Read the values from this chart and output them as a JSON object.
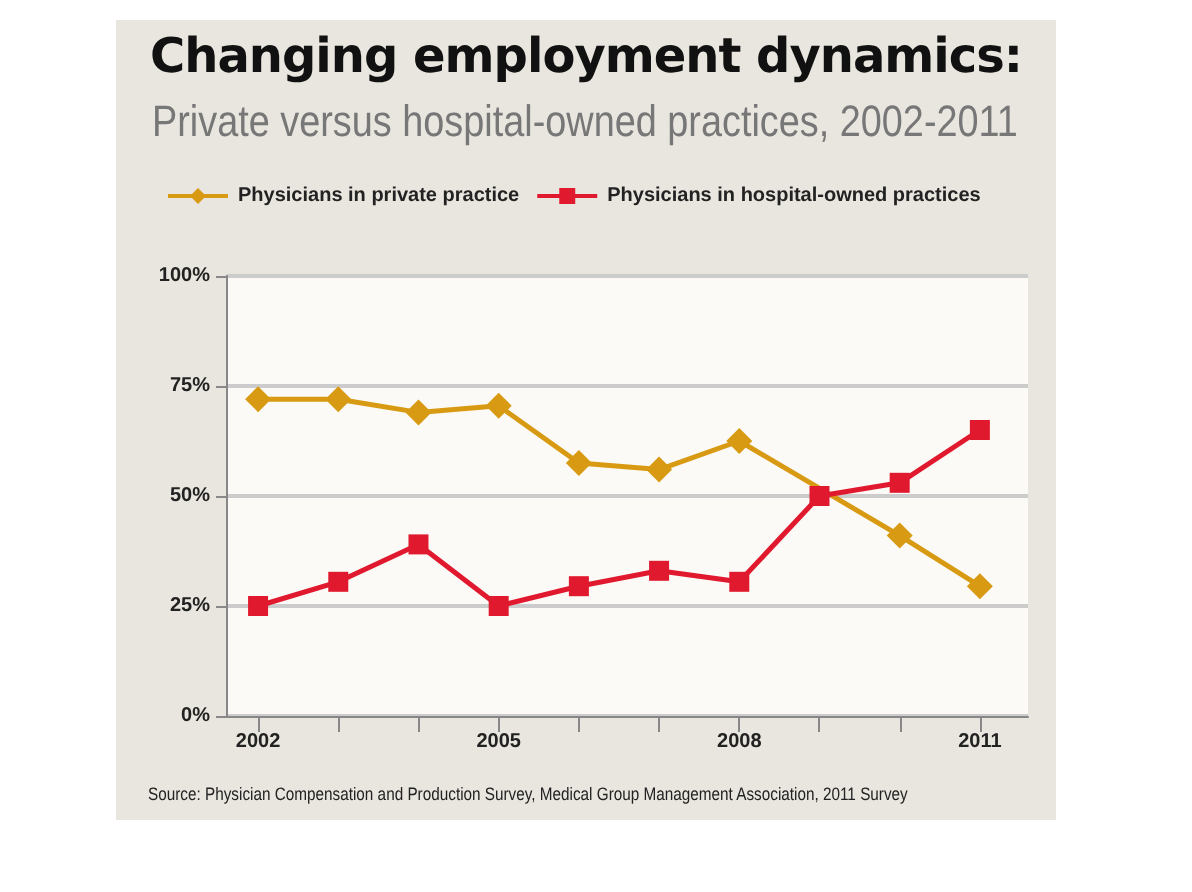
{
  "chart_data": {
    "type": "line",
    "title": "Changing employment dynamics:",
    "subtitle": "Private versus hospital-owned practices, 2002-2011",
    "x": [
      2002,
      2003,
      2004,
      2005,
      2006,
      2007,
      2008,
      2009,
      2010,
      2011
    ],
    "series": [
      {
        "name": "Physicians in private practice",
        "color": "#d89a12",
        "marker": "diamond",
        "values": [
          72,
          72,
          69,
          70.5,
          57.5,
          56,
          62.5,
          null,
          41,
          29.5
        ]
      },
      {
        "name": "Physicians in hospital-owned practices",
        "color": "#e0192e",
        "marker": "square",
        "values": [
          25,
          30.5,
          39,
          25,
          29.5,
          33,
          30.5,
          50,
          53,
          65
        ]
      }
    ],
    "xlim": [
      2001.6,
      2011.6
    ],
    "xticks": [
      2002,
      {
        "value": 2003,
        "label": null
      },
      {
        "value": 2004,
        "label": null
      },
      2005,
      {
        "value": 2006,
        "label": null
      },
      {
        "value": 2007,
        "label": null
      },
      2008,
      {
        "value": 2009,
        "label": null
      },
      {
        "value": 2010,
        "label": null
      },
      2011
    ],
    "ylim": [
      0,
      100
    ],
    "yticks": [
      {
        "value": 0,
        "label": "0%"
      },
      {
        "value": 25,
        "label": "25%"
      },
      {
        "value": 50,
        "label": "50%"
      },
      {
        "value": 75,
        "label": "75%"
      },
      {
        "value": 100,
        "label": "100%"
      }
    ],
    "grid": "y",
    "legend": "top left",
    "line_style": "solid",
    "annotations": [
      "Source: Physician Compensation and Production Survey, Medical Group Management Association, 2011 Survey"
    ]
  }
}
